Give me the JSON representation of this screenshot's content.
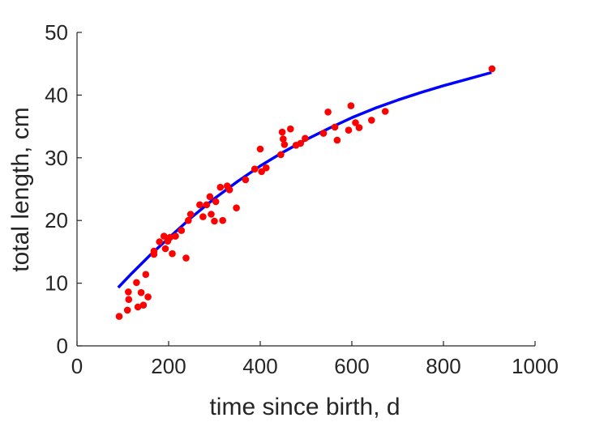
{
  "chart_data": {
    "type": "scatter",
    "title": "",
    "xlabel": "time since birth, d",
    "ylabel": "total length, cm",
    "xlim": [
      0,
      1000
    ],
    "ylim": [
      0,
      50
    ],
    "xticks": [
      0,
      200,
      400,
      600,
      800,
      1000
    ],
    "yticks": [
      0,
      10,
      20,
      30,
      40,
      50
    ],
    "grid": false,
    "box": false,
    "colors": {
      "points": "#ff0000",
      "fit": "#0000ff",
      "axis": "#262626"
    },
    "series": [
      {
        "type": "scatter",
        "points": [
          [
            92,
            4.7
          ],
          [
            110,
            5.7
          ],
          [
            112,
            8.6
          ],
          [
            113,
            7.4
          ],
          [
            130,
            10.1
          ],
          [
            133,
            6.2
          ],
          [
            140,
            8.5
          ],
          [
            145,
            6.5
          ],
          [
            150,
            11.4
          ],
          [
            155,
            7.8
          ],
          [
            168,
            14.6
          ],
          [
            168,
            15.1
          ],
          [
            180,
            16.6
          ],
          [
            190,
            17.5
          ],
          [
            193,
            15.5
          ],
          [
            198,
            16.7
          ],
          [
            203,
            17.3
          ],
          [
            208,
            14.7
          ],
          [
            215,
            17.5
          ],
          [
            228,
            18.4
          ],
          [
            238,
            14.0
          ],
          [
            243,
            20.0
          ],
          [
            248,
            21.0
          ],
          [
            268,
            22.5
          ],
          [
            275,
            20.6
          ],
          [
            283,
            22.5
          ],
          [
            290,
            23.8
          ],
          [
            293,
            21.0
          ],
          [
            300,
            19.9
          ],
          [
            303,
            23.0
          ],
          [
            313,
            25.3
          ],
          [
            318,
            20.0
          ],
          [
            328,
            25.5
          ],
          [
            333,
            24.9
          ],
          [
            348,
            22.0
          ],
          [
            368,
            26.5
          ],
          [
            388,
            28.2
          ],
          [
            400,
            31.4
          ],
          [
            403,
            27.8
          ],
          [
            413,
            28.4
          ],
          [
            445,
            30.5
          ],
          [
            448,
            34.1
          ],
          [
            450,
            33.0
          ],
          [
            453,
            32.1
          ],
          [
            466,
            34.6
          ],
          [
            478,
            32.0
          ],
          [
            488,
            32.3
          ],
          [
            498,
            33.1
          ],
          [
            538,
            33.9
          ],
          [
            548,
            37.3
          ],
          [
            563,
            34.9
          ],
          [
            568,
            32.8
          ],
          [
            593,
            34.4
          ],
          [
            598,
            38.3
          ],
          [
            608,
            35.6
          ],
          [
            616,
            34.8
          ],
          [
            643,
            36.0
          ],
          [
            673,
            37.4
          ],
          [
            906,
            44.2
          ]
        ]
      },
      {
        "type": "line",
        "x": [
          90,
          120,
          160,
          200,
          250,
          300,
          350,
          400,
          450,
          500,
          550,
          600,
          650,
          700,
          750,
          800,
          850,
          905
        ],
        "y": [
          9.3,
          11.6,
          14.5,
          17.2,
          20.5,
          23.5,
          26.2,
          28.7,
          30.9,
          32.9,
          34.7,
          36.4,
          37.9,
          39.2,
          40.4,
          41.5,
          42.5,
          43.6
        ]
      }
    ]
  }
}
